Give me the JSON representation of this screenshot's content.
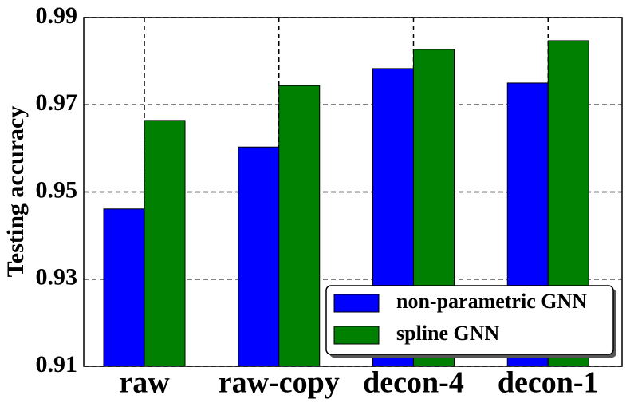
{
  "chart_data": {
    "type": "bar",
    "y_label": "Testing accuracy",
    "categories": [
      "raw",
      "raw-copy",
      "decon-4",
      "decon-1"
    ],
    "series": [
      {
        "name": "non-parametric GNN",
        "color": "#0000ff",
        "values": [
          0.9461,
          0.9603,
          0.9783,
          0.975
        ]
      },
      {
        "name": "spline GNN",
        "color": "#008000",
        "values": [
          0.9664,
          0.9744,
          0.9827,
          0.9847
        ]
      }
    ],
    "ylim": [
      0.91,
      0.99
    ],
    "yticks": [
      0.91,
      0.93,
      0.95,
      0.97,
      0.99
    ],
    "grid": true,
    "legend": "lower right"
  }
}
